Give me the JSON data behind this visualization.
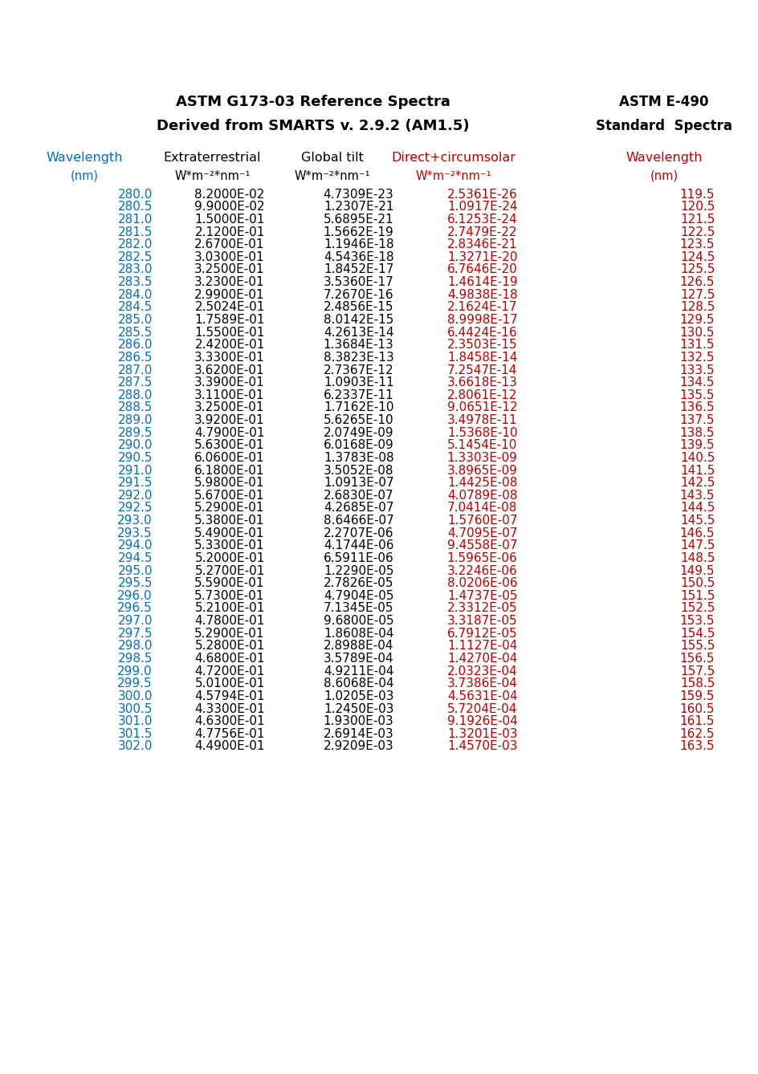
{
  "title_left_line1": "ASTM G173-03 Reference Spectra",
  "title_left_line2": "Derived from SMARTS v. 2.9.2 (AM1.5)",
  "title_right_line1": "ASTM E-490",
  "title_right_line2": "Standard  Spectra",
  "header_col1": "Wavelength",
  "header_col1b": "(nm)",
  "header_col2": "Extraterrestrial",
  "header_col2b": "W*m⁻²*nm⁻¹",
  "header_col3": "Global tilt",
  "header_col3b": "W*m⁻²*nm⁻¹",
  "header_col4": "Direct+circumsolar",
  "header_col4b": "W*m⁻²*nm⁻¹",
  "header_col5": "Wavelength",
  "header_col5b": "(nm)",
  "col1_color": "#0070C0",
  "col2_color": "#000000",
  "col3_color": "#000000",
  "col4_color": "#C00000",
  "col5_color": "#C00000",
  "header1_color": "#0070C0",
  "header2_color": "#000000",
  "header3_color": "#000000",
  "header4_color": "#C00000",
  "header5_color": "#C00000",
  "title_color": "#000000",
  "background_color": "#FFFFFF",
  "rows": [
    [
      "280.0",
      "8.2000E-02",
      "4.7309E-23",
      "2.5361E-26",
      "119.5"
    ],
    [
      "280.5",
      "9.9000E-02",
      "1.2307E-21",
      "1.0917E-24",
      "120.5"
    ],
    [
      "281.0",
      "1.5000E-01",
      "5.6895E-21",
      "6.1253E-24",
      "121.5"
    ],
    [
      "281.5",
      "2.1200E-01",
      "1.5662E-19",
      "2.7479E-22",
      "122.5"
    ],
    [
      "282.0",
      "2.6700E-01",
      "1.1946E-18",
      "2.8346E-21",
      "123.5"
    ],
    [
      "282.5",
      "3.0300E-01",
      "4.5436E-18",
      "1.3271E-20",
      "124.5"
    ],
    [
      "283.0",
      "3.2500E-01",
      "1.8452E-17",
      "6.7646E-20",
      "125.5"
    ],
    [
      "283.5",
      "3.2300E-01",
      "3.5360E-17",
      "1.4614E-19",
      "126.5"
    ],
    [
      "284.0",
      "2.9900E-01",
      "7.2670E-16",
      "4.9838E-18",
      "127.5"
    ],
    [
      "284.5",
      "2.5024E-01",
      "2.4856E-15",
      "2.1624E-17",
      "128.5"
    ],
    [
      "285.0",
      "1.7589E-01",
      "8.0142E-15",
      "8.9998E-17",
      "129.5"
    ],
    [
      "285.5",
      "1.5500E-01",
      "4.2613E-14",
      "6.4424E-16",
      "130.5"
    ],
    [
      "286.0",
      "2.4200E-01",
      "1.3684E-13",
      "2.3503E-15",
      "131.5"
    ],
    [
      "286.5",
      "3.3300E-01",
      "8.3823E-13",
      "1.8458E-14",
      "132.5"
    ],
    [
      "287.0",
      "3.6200E-01",
      "2.7367E-12",
      "7.2547E-14",
      "133.5"
    ],
    [
      "287.5",
      "3.3900E-01",
      "1.0903E-11",
      "3.6618E-13",
      "134.5"
    ],
    [
      "288.0",
      "3.1100E-01",
      "6.2337E-11",
      "2.8061E-12",
      "135.5"
    ],
    [
      "288.5",
      "3.2500E-01",
      "1.7162E-10",
      "9.0651E-12",
      "136.5"
    ],
    [
      "289.0",
      "3.9200E-01",
      "5.6265E-10",
      "3.4978E-11",
      "137.5"
    ],
    [
      "289.5",
      "4.7900E-01",
      "2.0749E-09",
      "1.5368E-10",
      "138.5"
    ],
    [
      "290.0",
      "5.6300E-01",
      "6.0168E-09",
      "5.1454E-10",
      "139.5"
    ],
    [
      "290.5",
      "6.0600E-01",
      "1.3783E-08",
      "1.3303E-09",
      "140.5"
    ],
    [
      "291.0",
      "6.1800E-01",
      "3.5052E-08",
      "3.8965E-09",
      "141.5"
    ],
    [
      "291.5",
      "5.9800E-01",
      "1.0913E-07",
      "1.4425E-08",
      "142.5"
    ],
    [
      "292.0",
      "5.6700E-01",
      "2.6830E-07",
      "4.0789E-08",
      "143.5"
    ],
    [
      "292.5",
      "5.2900E-01",
      "4.2685E-07",
      "7.0414E-08",
      "144.5"
    ],
    [
      "293.0",
      "5.3800E-01",
      "8.6466E-07",
      "1.5760E-07",
      "145.5"
    ],
    [
      "293.5",
      "5.4900E-01",
      "2.2707E-06",
      "4.7095E-07",
      "146.5"
    ],
    [
      "294.0",
      "5.3300E-01",
      "4.1744E-06",
      "9.4558E-07",
      "147.5"
    ],
    [
      "294.5",
      "5.2000E-01",
      "6.5911E-06",
      "1.5965E-06",
      "148.5"
    ],
    [
      "295.0",
      "5.2700E-01",
      "1.2290E-05",
      "3.2246E-06",
      "149.5"
    ],
    [
      "295.5",
      "5.5900E-01",
      "2.7826E-05",
      "8.0206E-06",
      "150.5"
    ],
    [
      "296.0",
      "5.7300E-01",
      "4.7904E-05",
      "1.4737E-05",
      "151.5"
    ],
    [
      "296.5",
      "5.2100E-01",
      "7.1345E-05",
      "2.3312E-05",
      "152.5"
    ],
    [
      "297.0",
      "4.7800E-01",
      "9.6800E-05",
      "3.3187E-05",
      "153.5"
    ],
    [
      "297.5",
      "5.2900E-01",
      "1.8608E-04",
      "6.7912E-05",
      "154.5"
    ],
    [
      "298.0",
      "5.2800E-01",
      "2.8988E-04",
      "1.1127E-04",
      "155.5"
    ],
    [
      "298.5",
      "4.6800E-01",
      "3.5789E-04",
      "1.4270E-04",
      "156.5"
    ],
    [
      "299.0",
      "4.7200E-01",
      "4.9211E-04",
      "2.0323E-04",
      "157.5"
    ],
    [
      "299.5",
      "5.0100E-01",
      "8.6068E-04",
      "3.7386E-04",
      "158.5"
    ],
    [
      "300.0",
      "4.5794E-01",
      "1.0205E-03",
      "4.5631E-04",
      "159.5"
    ],
    [
      "300.5",
      "4.3300E-01",
      "1.2450E-03",
      "5.7204E-04",
      "160.5"
    ],
    [
      "301.0",
      "4.6300E-01",
      "1.9300E-03",
      "9.1926E-04",
      "161.5"
    ],
    [
      "301.5",
      "4.7756E-01",
      "2.6914E-03",
      "1.3201E-03",
      "162.5"
    ],
    [
      "302.0",
      "4.4900E-01",
      "2.9209E-03",
      "1.4570E-03",
      "163.5"
    ]
  ]
}
